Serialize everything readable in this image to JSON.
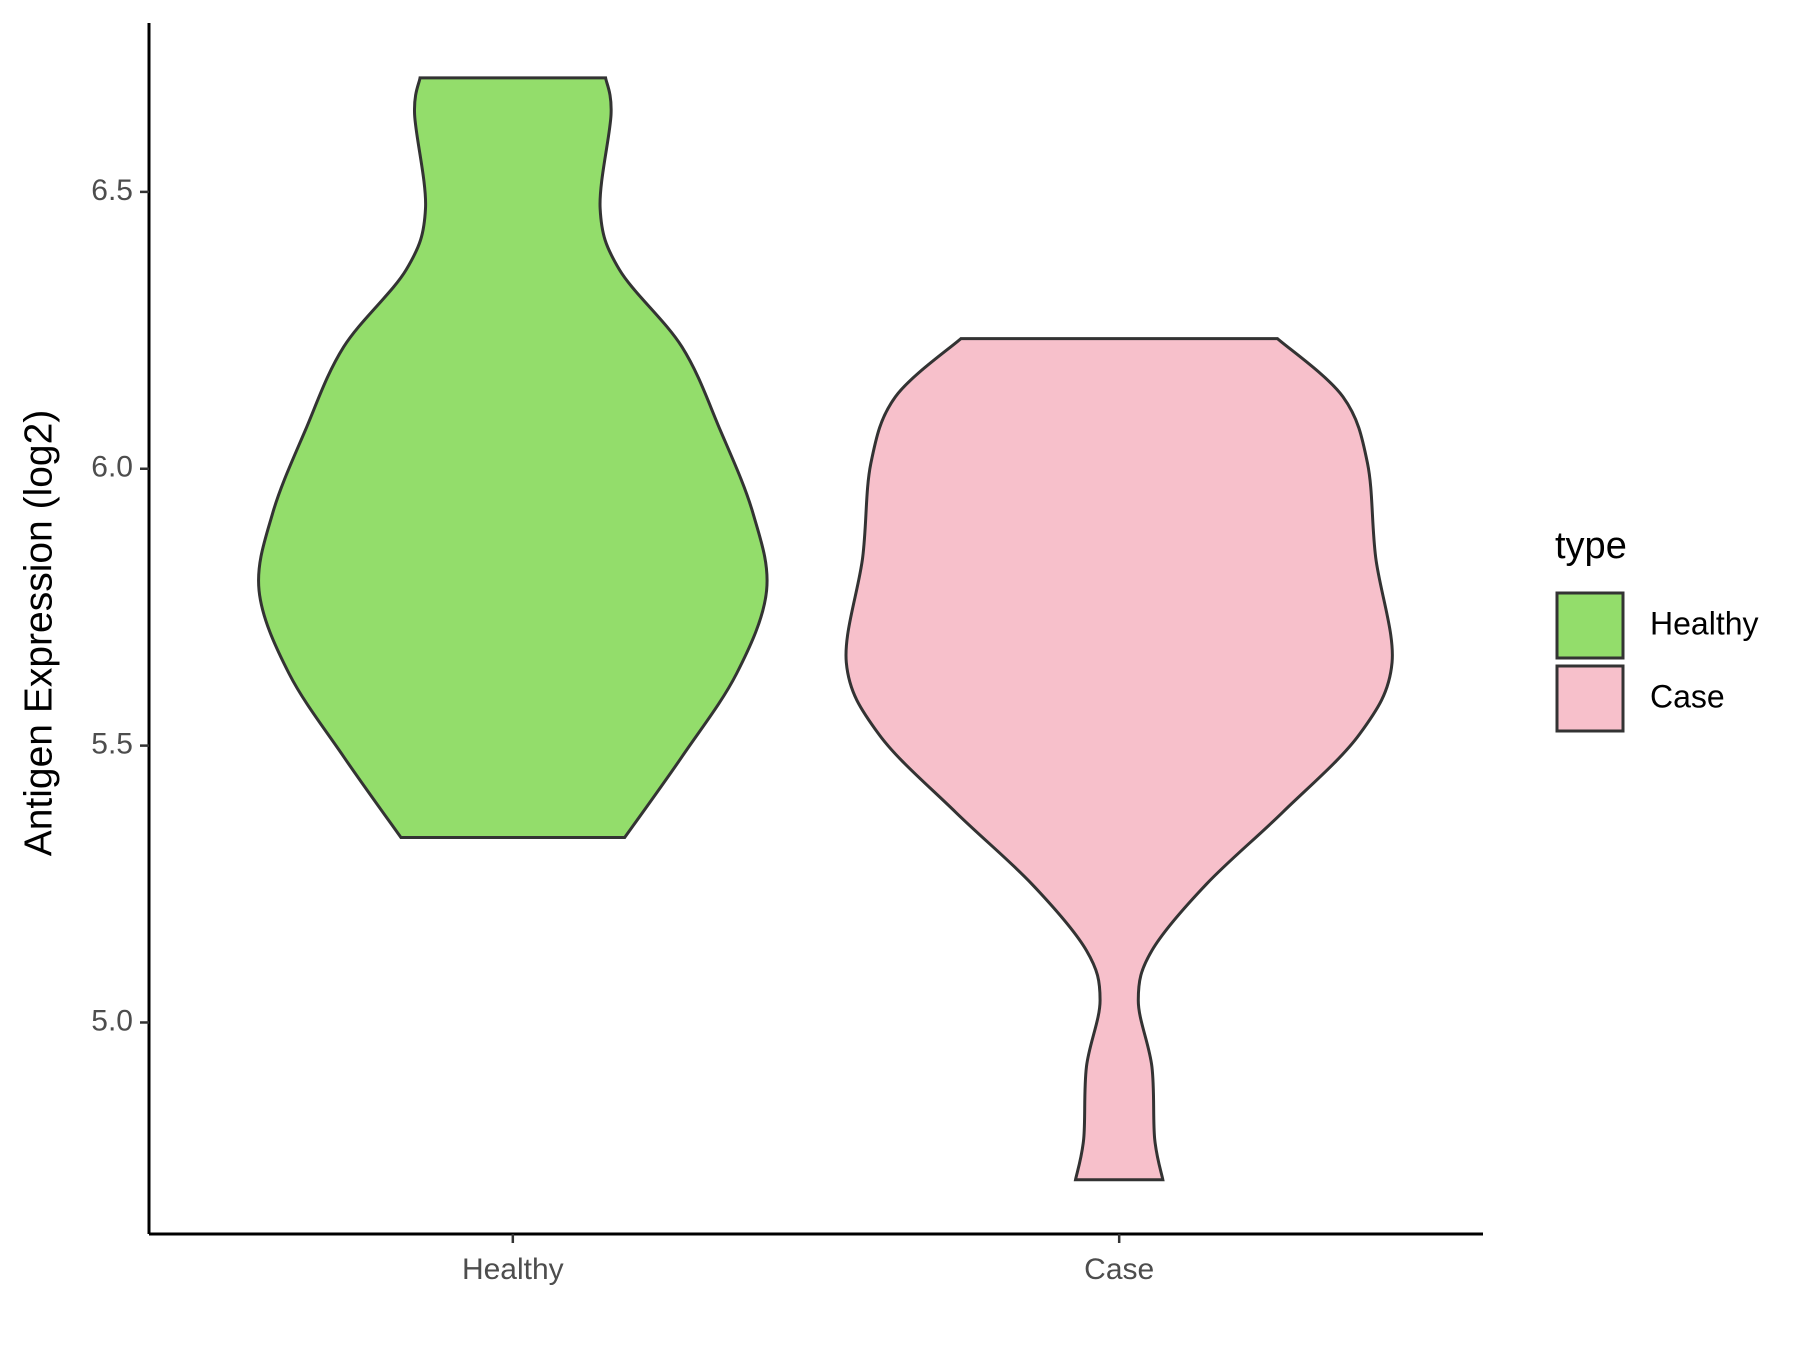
{
  "chart_data": {
    "type": "violin",
    "y_label": "Antigen Expression (log2)",
    "categories": [
      "Healthy",
      "Case"
    ],
    "legend_title": "type",
    "legend": "right",
    "series": [
      {
        "name": "Healthy",
        "color": "#93dd6b",
        "y": [
          6.706,
          6.64,
          6.47,
          6.36,
          6.22,
          6.07,
          5.92,
          5.78,
          5.63,
          5.48,
          5.334
        ],
        "widths": [
          0.34,
          0.36,
          0.32,
          0.39,
          0.62,
          0.76,
          0.88,
          0.93,
          0.82,
          0.62,
          0.41
        ]
      },
      {
        "name": "Case",
        "color": "#f7c0cb",
        "y": [
          6.235,
          6.13,
          6.01,
          5.84,
          5.65,
          5.52,
          5.38,
          5.25,
          5.13,
          5.04,
          4.92,
          4.79,
          4.716
        ],
        "widths": [
          0.58,
          0.82,
          0.91,
          0.94,
          1.0,
          0.88,
          0.6,
          0.32,
          0.12,
          0.07,
          0.12,
          0.13,
          0.16
        ]
      }
    ],
    "ylim": [
      4.618,
      6.805
    ],
    "yticks": [
      {
        "value": 5.0,
        "label": "5.0"
      },
      5.5,
      {
        "value": 6.0,
        "label": "6.0"
      },
      6.5
    ]
  }
}
